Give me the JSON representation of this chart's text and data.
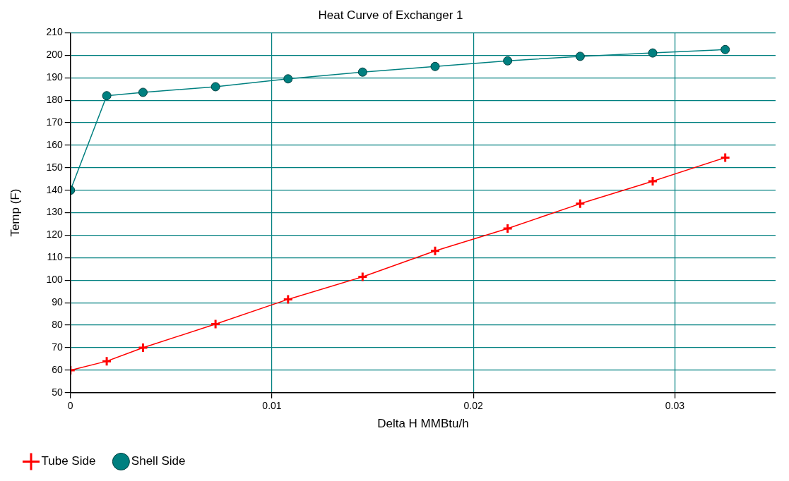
{
  "chart_data": {
    "type": "line",
    "title": "Heat Curve of Exchanger 1",
    "xlabel": "Delta H MMBtu/h",
    "ylabel": "Temp (F)",
    "xlim": [
      0,
      0.035
    ],
    "xticks": [
      0,
      0.01,
      0.02,
      0.03
    ],
    "ylim": [
      50,
      210
    ],
    "yticks": [
      50,
      60,
      70,
      80,
      90,
      100,
      110,
      120,
      130,
      140,
      150,
      160,
      170,
      180,
      190,
      200,
      210
    ],
    "grid": true,
    "legend": "bottom left",
    "series": [
      {
        "name": "Tube Side",
        "color": "#ff0000",
        "marker": "cross",
        "x": [
          0,
          0.0018,
          0.0036,
          0.0072,
          0.0108,
          0.0145,
          0.0181,
          0.0217,
          0.0253,
          0.0289,
          0.0325
        ],
        "values": [
          60,
          64,
          70,
          80.5,
          91.5,
          101.5,
          113,
          123,
          134,
          144,
          154.5
        ]
      },
      {
        "name": "Shell Side",
        "color": "#008080",
        "marker": "circle",
        "x": [
          0,
          0.0018,
          0.0036,
          0.0072,
          0.0108,
          0.0145,
          0.0181,
          0.0217,
          0.0253,
          0.0289,
          0.0325
        ],
        "values": [
          140,
          182,
          183.5,
          186,
          189.5,
          192.5,
          195,
          197.5,
          199.5,
          201,
          202.5
        ]
      }
    ]
  }
}
